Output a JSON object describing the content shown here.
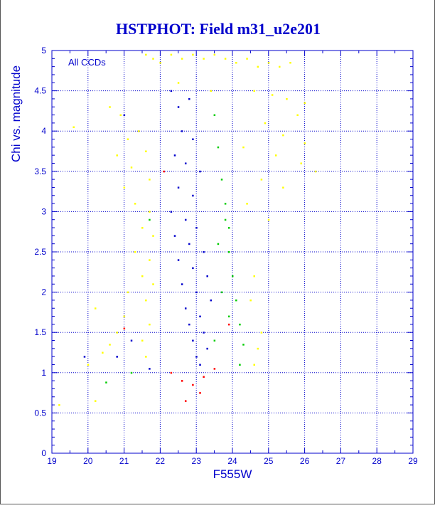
{
  "chart_data": {
    "type": "scatter",
    "title": "HSTPHOT: Field m31_u2e201",
    "xlabel": "F555W",
    "ylabel": "Chi vs. magnitude",
    "annotation": "All CCDs",
    "xlim": [
      19,
      29
    ],
    "ylim": [
      0,
      5
    ],
    "x_ticks": [
      19,
      20,
      21,
      22,
      23,
      24,
      25,
      26,
      27,
      28,
      29
    ],
    "y_ticks": [
      0,
      0.5,
      1,
      1.5,
      2,
      2.5,
      3,
      3.5,
      4,
      4.5,
      5
    ],
    "grid": true,
    "grid_style": "dotted",
    "colors": {
      "title": "#0000cc",
      "axes": "#0000cc",
      "yellow": "#ffff00",
      "blue": "#0000cc",
      "green": "#00cc00",
      "red": "#ff0000"
    },
    "series": [
      {
        "color": "yellow",
        "points": [
          [
            21.6,
            4.95
          ],
          [
            21.8,
            4.9
          ],
          [
            22.0,
            4.85
          ],
          [
            22.3,
            4.95
          ],
          [
            22.6,
            4.9
          ],
          [
            22.9,
            4.95
          ],
          [
            23.2,
            4.9
          ],
          [
            23.5,
            4.95
          ],
          [
            23.8,
            4.9
          ],
          [
            24.1,
            4.85
          ],
          [
            24.4,
            4.9
          ],
          [
            24.7,
            4.8
          ],
          [
            25.0,
            4.85
          ],
          [
            25.3,
            4.8
          ],
          [
            25.6,
            4.85
          ],
          [
            22.5,
            4.6
          ],
          [
            23.4,
            4.5
          ],
          [
            24.6,
            4.5
          ],
          [
            25.1,
            4.45
          ],
          [
            25.5,
            4.4
          ],
          [
            26.0,
            4.35
          ],
          [
            25.8,
            4.2
          ],
          [
            24.9,
            4.1
          ],
          [
            25.4,
            3.95
          ],
          [
            26.0,
            3.85
          ],
          [
            24.3,
            3.8
          ],
          [
            25.2,
            3.7
          ],
          [
            25.9,
            3.6
          ],
          [
            26.3,
            3.5
          ],
          [
            24.8,
            3.4
          ],
          [
            25.4,
            3.3
          ],
          [
            24.4,
            3.1
          ],
          [
            25.0,
            2.9
          ],
          [
            20.6,
            4.3
          ],
          [
            20.9,
            4.2
          ],
          [
            21.1,
            3.9
          ],
          [
            20.8,
            3.7
          ],
          [
            21.2,
            3.55
          ],
          [
            21.0,
            3.3
          ],
          [
            21.3,
            3.1
          ],
          [
            21.5,
            2.8
          ],
          [
            21.3,
            2.5
          ],
          [
            21.5,
            2.2
          ],
          [
            21.1,
            2.0
          ],
          [
            21.0,
            1.7
          ],
          [
            20.8,
            1.5
          ],
          [
            20.6,
            1.35
          ],
          [
            20.4,
            1.25
          ],
          [
            21.4,
            4.0
          ],
          [
            21.6,
            3.75
          ],
          [
            21.7,
            3.4
          ],
          [
            21.7,
            3.0
          ],
          [
            21.8,
            2.7
          ],
          [
            21.7,
            2.4
          ],
          [
            21.8,
            2.1
          ],
          [
            21.6,
            1.9
          ],
          [
            21.7,
            1.6
          ],
          [
            21.5,
            1.4
          ],
          [
            21.6,
            1.2
          ],
          [
            19.6,
            4.05
          ],
          [
            20.2,
            0.65
          ],
          [
            20.0,
            1.1
          ],
          [
            19.2,
            0.6
          ],
          [
            20.2,
            1.8
          ],
          [
            24.6,
            1.1
          ],
          [
            24.7,
            1.3
          ],
          [
            24.8,
            1.5
          ],
          [
            24.5,
            1.9
          ],
          [
            24.6,
            2.2
          ]
        ]
      },
      {
        "color": "blue",
        "points": [
          [
            22.3,
            4.5
          ],
          [
            22.5,
            4.3
          ],
          [
            22.8,
            4.4
          ],
          [
            22.6,
            4.0
          ],
          [
            22.9,
            3.9
          ],
          [
            22.4,
            3.7
          ],
          [
            22.7,
            3.6
          ],
          [
            23.1,
            3.5
          ],
          [
            22.5,
            3.3
          ],
          [
            22.9,
            3.2
          ],
          [
            22.3,
            3.0
          ],
          [
            22.7,
            2.9
          ],
          [
            23.0,
            2.8
          ],
          [
            22.4,
            2.7
          ],
          [
            22.8,
            2.6
          ],
          [
            23.2,
            2.5
          ],
          [
            22.5,
            2.4
          ],
          [
            22.9,
            2.3
          ],
          [
            23.3,
            2.2
          ],
          [
            22.6,
            2.1
          ],
          [
            23.0,
            2.0
          ],
          [
            23.4,
            1.9
          ],
          [
            22.7,
            1.8
          ],
          [
            23.1,
            1.7
          ],
          [
            22.8,
            1.6
          ],
          [
            23.2,
            1.5
          ],
          [
            22.9,
            1.4
          ],
          [
            23.3,
            1.3
          ],
          [
            23.0,
            1.2
          ],
          [
            23.1,
            1.1
          ],
          [
            21.2,
            1.4
          ],
          [
            20.8,
            1.2
          ],
          [
            19.9,
            1.2
          ],
          [
            21.0,
            4.2
          ],
          [
            21.7,
            1.05
          ]
        ]
      },
      {
        "color": "green",
        "points": [
          [
            23.5,
            4.2
          ],
          [
            23.6,
            3.8
          ],
          [
            23.7,
            3.4
          ],
          [
            23.8,
            3.1
          ],
          [
            23.9,
            2.8
          ],
          [
            23.9,
            2.5
          ],
          [
            24.0,
            2.2
          ],
          [
            24.1,
            1.9
          ],
          [
            24.2,
            1.6
          ],
          [
            24.3,
            1.35
          ],
          [
            24.2,
            1.1
          ],
          [
            23.8,
            2.9
          ],
          [
            23.6,
            2.6
          ],
          [
            23.7,
            2.0
          ],
          [
            23.9,
            1.7
          ],
          [
            23.5,
            1.4
          ],
          [
            20.5,
            0.88
          ],
          [
            21.7,
            2.9
          ],
          [
            21.2,
            1.0
          ]
        ]
      },
      {
        "color": "red",
        "points": [
          [
            22.3,
            1.0
          ],
          [
            22.6,
            0.9
          ],
          [
            22.9,
            0.85
          ],
          [
            23.2,
            0.95
          ],
          [
            23.5,
            1.05
          ],
          [
            23.1,
            0.75
          ],
          [
            22.7,
            0.65
          ],
          [
            21.0,
            1.55
          ],
          [
            23.9,
            1.6
          ],
          [
            22.1,
            3.5
          ]
        ]
      }
    ]
  }
}
